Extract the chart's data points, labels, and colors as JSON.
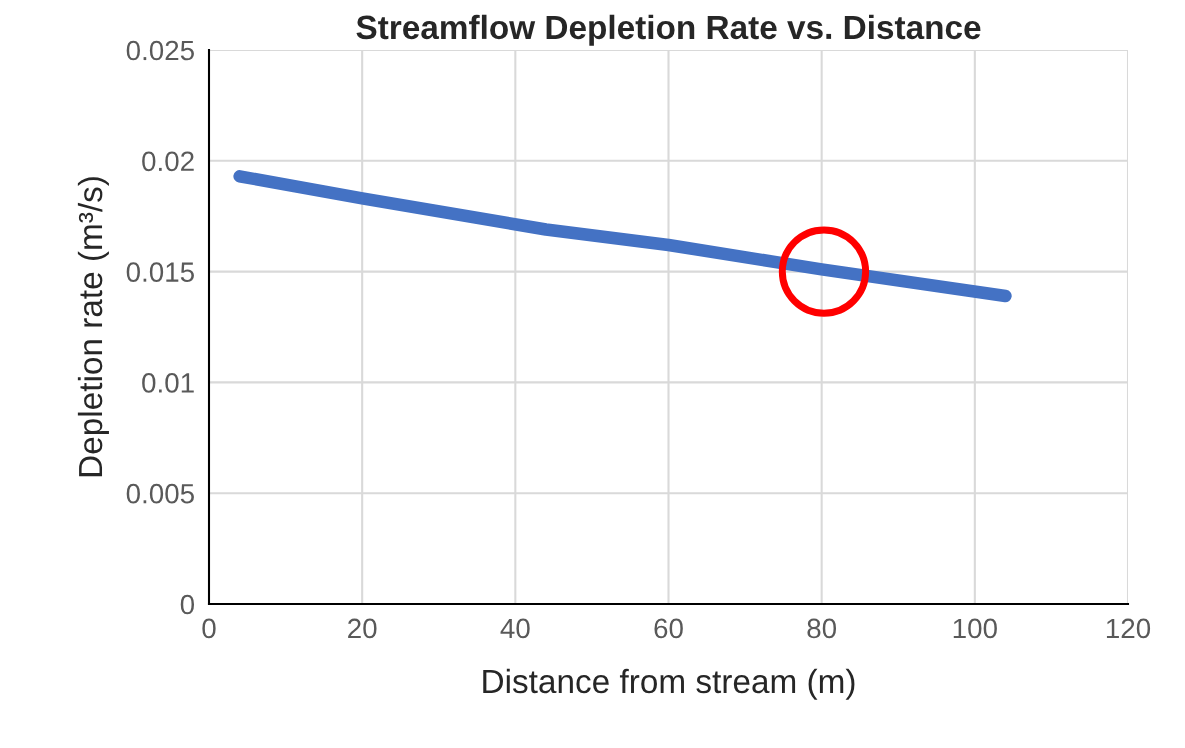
{
  "chart_data": {
    "type": "line",
    "title": "Streamflow Depletion Rate vs. Distance",
    "xlabel": "Distance from stream (m)",
    "ylabel": "Depletion rate (m³/s)",
    "series": [
      {
        "color": "#4472c4",
        "x": [
          4,
          20,
          44,
          60,
          80,
          104
        ],
        "values": [
          0.0193,
          0.0183,
          0.0169,
          0.0162,
          0.0151,
          0.0139
        ]
      },
      {
        "type": "scatter",
        "color": "#ff0000",
        "marker": "circle",
        "x": [
          80.3
        ],
        "values": [
          0.015
        ]
      }
    ],
    "xlim": [
      0,
      120
    ],
    "xticks": [
      0,
      20,
      40,
      60,
      80,
      100,
      120
    ],
    "ylim": [
      0,
      0.025
    ],
    "yticks": [
      0,
      0.005,
      0.01,
      0.015,
      0.02,
      0.025
    ],
    "grid": true
  }
}
